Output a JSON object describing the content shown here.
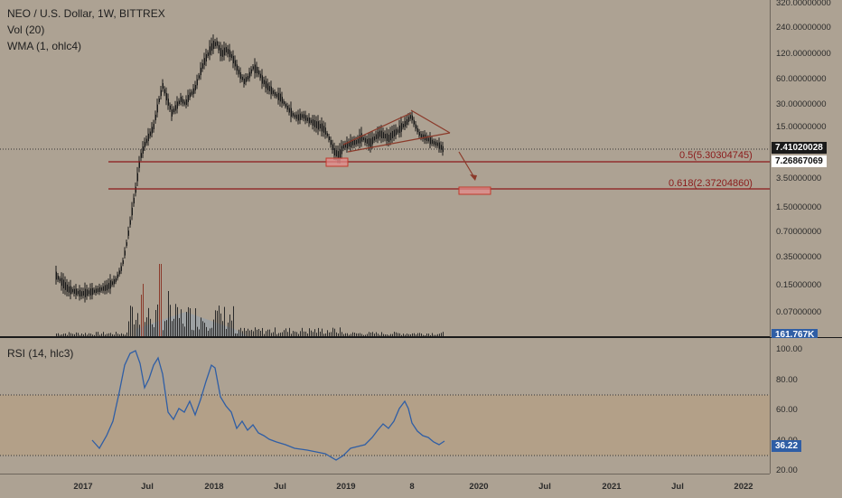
{
  "legend": {
    "main_title": "NEO / U.S. Dollar, 1W, BITTREX",
    "volume": "Vol (20)",
    "wma": "WMA (1, ohlc4)",
    "rsi": "RSI (14, hlc3)"
  },
  "price_scale": {
    "labels": [
      "320.00000000",
      "240.00000000",
      "120.00000000",
      "60.00000000",
      "30.00000000",
      "15.00000000",
      "3.50000000",
      "1.50000000",
      "0.70000000",
      "0.35000000",
      "0.15000000",
      "0.07000000"
    ]
  },
  "badges": {
    "last_price": "7.41020028",
    "wma_price": "7.26867069",
    "volume": "161.767K",
    "rsi": "36.22"
  },
  "rsi_scale": {
    "labels": [
      "100.00",
      "80.00",
      "60.00",
      "40.00",
      "20.00"
    ]
  },
  "time_axis": {
    "labels": [
      "2017",
      "Jul",
      "2018",
      "Jul",
      "2019",
      "8",
      "2020",
      "Jul",
      "2021",
      "Jul",
      "2022"
    ]
  },
  "fib_levels": [
    {
      "label": "0.5(5.30304745)",
      "price": 5.30304745
    },
    {
      "label": "0.618(2.37204860)",
      "price": 2.3720486
    }
  ],
  "colors": {
    "background": "#ada293",
    "candle": "#1a1a1a",
    "fib_line": "#8b1a1a",
    "rsi_line": "#2f5ea5",
    "rsi_band": "#b89f7f",
    "badge_dark": "#1a1a1a",
    "badge_blue": "#2f5ea5"
  }
}
